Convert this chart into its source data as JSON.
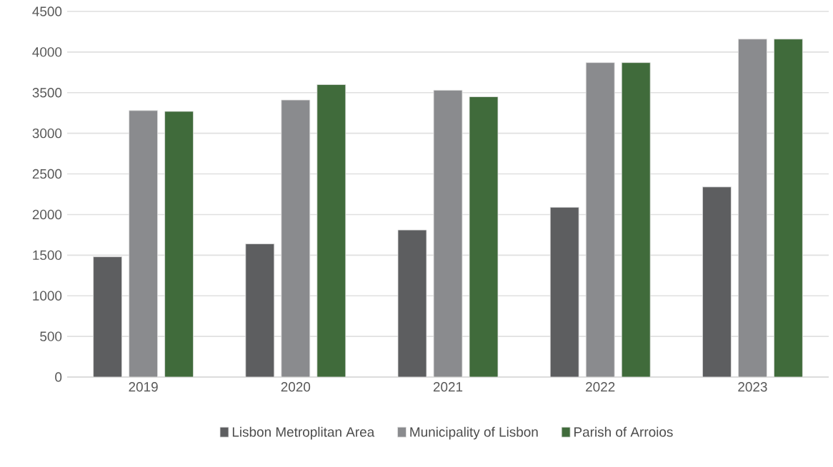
{
  "chart_data": {
    "type": "bar",
    "categories": [
      "2019",
      "2020",
      "2021",
      "2022",
      "2023"
    ],
    "series": [
      {
        "name": "Lisbon Metroplitan Area",
        "color": "#5d5e60",
        "values": [
          1480,
          1640,
          1810,
          2090,
          2340
        ]
      },
      {
        "name": "Municipality of Lisbon",
        "color": "#8a8b8e",
        "values": [
          3280,
          3410,
          3530,
          3870,
          4160
        ]
      },
      {
        "name": "Parish of Arroios",
        "color": "#406b3b",
        "values": [
          3270,
          3600,
          3450,
          3870,
          4160
        ]
      }
    ],
    "ylim": [
      0,
      4500
    ],
    "yticks": [
      0,
      500,
      1000,
      1500,
      2000,
      2500,
      3000,
      3500,
      4000,
      4500
    ],
    "grid": "y",
    "legend": "bottom"
  }
}
